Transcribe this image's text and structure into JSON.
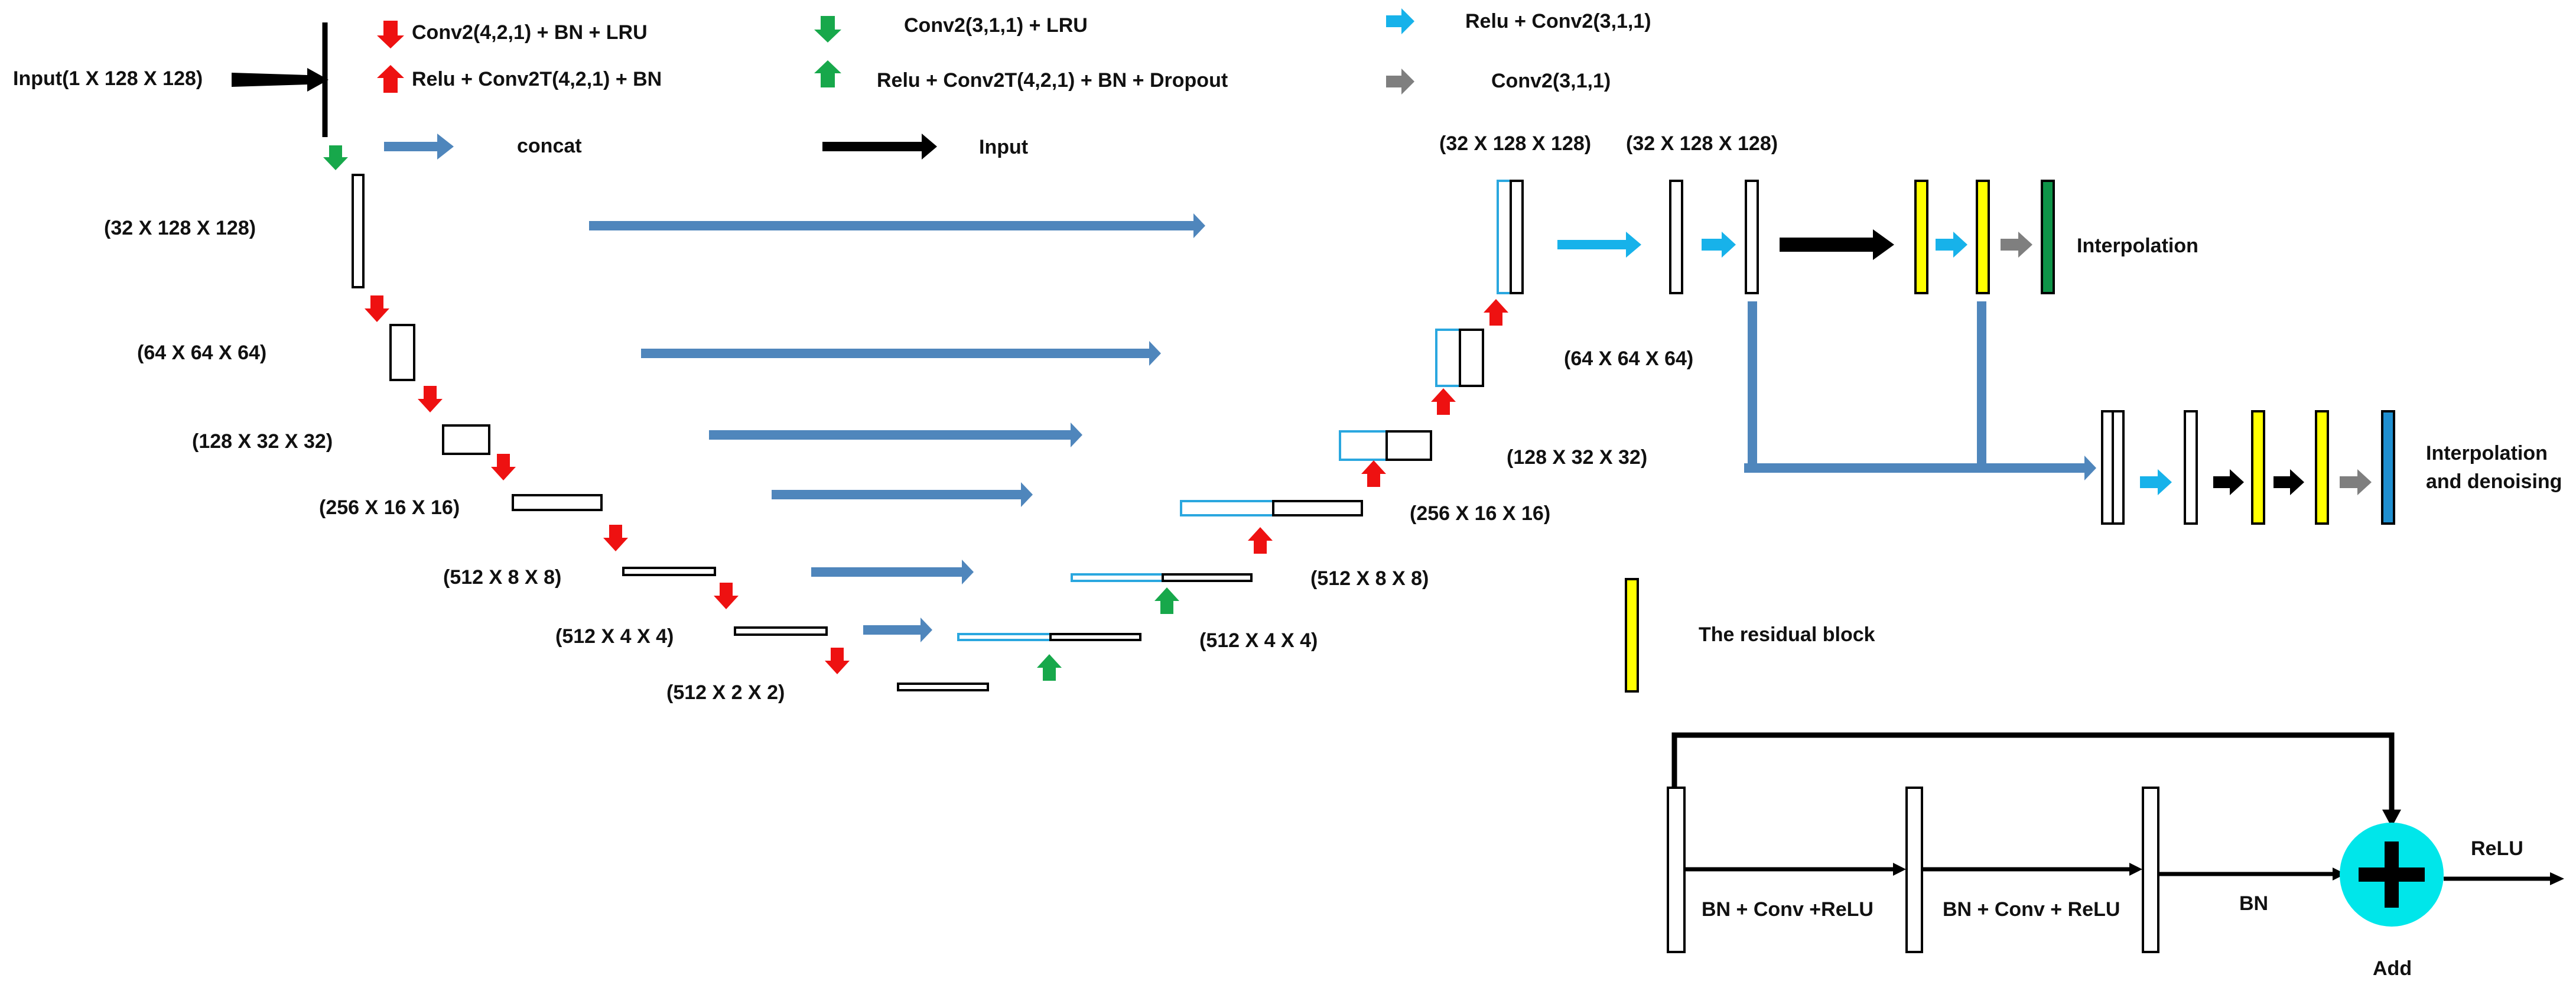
{
  "colors": {
    "down_red": "#ee1111",
    "up_red": "#ee1111",
    "down_green": "#17a84b",
    "up_green": "#17a84b",
    "relu_conv_blue": "#17b2ea",
    "conv_gray": "#7f7f7f",
    "concat_blue": "#4f86bc",
    "input_black": "#000000",
    "residual_yellow": "#ffff00",
    "output_green": "#0e9448",
    "output_blue": "#1f8fd0",
    "decoder_outline_blue": "#2aa7df",
    "add_circle": "#00e6ea"
  },
  "legend": {
    "down_red": "Conv2(4,2,1) + BN + LRU",
    "up_red": "Relu + Conv2T(4,2,1) + BN",
    "down_green": "Conv2(3,1,1) + LRU",
    "up_green": "Relu + Conv2T(4,2,1) + BN + Dropout",
    "right_blue": "Relu + Conv2(3,1,1)",
    "right_gray": "Conv2(3,1,1)",
    "concat": "concat",
    "input": "Input"
  },
  "input_label": "Input(1 X 128 X 128)",
  "encoder_labels": [
    "(32 X 128 X 128)",
    "(64 X 64 X 64)",
    "(128 X 32 X 32)",
    "(256 X 16 X 16)",
    "(512 X 8 X 8)",
    "(512 X 4 X 4)",
    "(512 X 2 X 2)"
  ],
  "decoder_labels": [
    "(512 X 4 X 4)",
    "(512 X 8 X 8)",
    "(256 X 16 X 16)",
    "(128 X 32 X 32)",
    "(64 X 64 X 64)",
    "(32 X 128 X 128)"
  ],
  "head_label": "(32 X 128 X 128)",
  "outputs": {
    "interpolation": "Interpolation",
    "denoising": [
      "Interpolation",
      "and denoising"
    ]
  },
  "residual": {
    "legend": "The residual block",
    "ops": [
      "BN + Conv  +ReLU",
      "BN + Conv  + ReLU",
      "BN"
    ],
    "add": "Add",
    "relu": "ReLU"
  }
}
